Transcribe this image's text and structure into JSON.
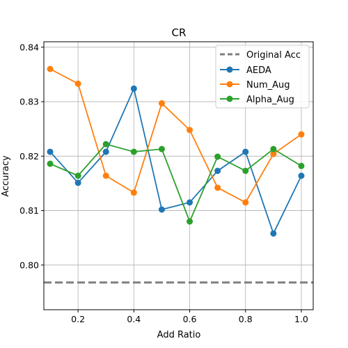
{
  "chart_data": {
    "type": "line",
    "title": "CR",
    "xlabel": "Add Ratio",
    "ylabel": "Accuracy",
    "xlim": [
      0.0775,
      1.0425
    ],
    "ylim": [
      0.7918,
      0.841
    ],
    "xticks": [
      0.2,
      0.4,
      0.6,
      0.8,
      1.0
    ],
    "xtick_labels": [
      "0.2",
      "0.4",
      "0.6",
      "0.8",
      "1.0"
    ],
    "yticks": [
      0.8,
      0.81,
      0.82,
      0.83,
      0.84
    ],
    "ytick_labels": [
      "0.80",
      "0.81",
      "0.82",
      "0.83",
      "0.84"
    ],
    "grid": true,
    "legend_position": "top-right",
    "x": [
      0.1,
      0.2,
      0.3,
      0.4,
      0.5,
      0.6,
      0.7,
      0.8,
      0.9,
      1.0
    ],
    "reference_line": {
      "name": "Original Acc",
      "value": 0.7968,
      "color": "#7f7f7f",
      "style": "dashed"
    },
    "series": [
      {
        "name": "AEDA",
        "color": "#1f77b4",
        "values": [
          0.8208,
          0.8151,
          0.8208,
          0.8324,
          0.8102,
          0.8115,
          0.8173,
          0.8208,
          0.8058,
          0.8164
        ]
      },
      {
        "name": "Num_Aug",
        "color": "#ff7f0e",
        "values": [
          0.836,
          0.8333,
          0.8164,
          0.8133,
          0.8297,
          0.8248,
          0.8142,
          0.8115,
          0.8204,
          0.824
        ]
      },
      {
        "name": "Alpha_Aug",
        "color": "#2ca02c",
        "values": [
          0.8186,
          0.8164,
          0.8222,
          0.8208,
          0.8213,
          0.808,
          0.8199,
          0.8173,
          0.8213,
          0.8182
        ]
      }
    ]
  }
}
